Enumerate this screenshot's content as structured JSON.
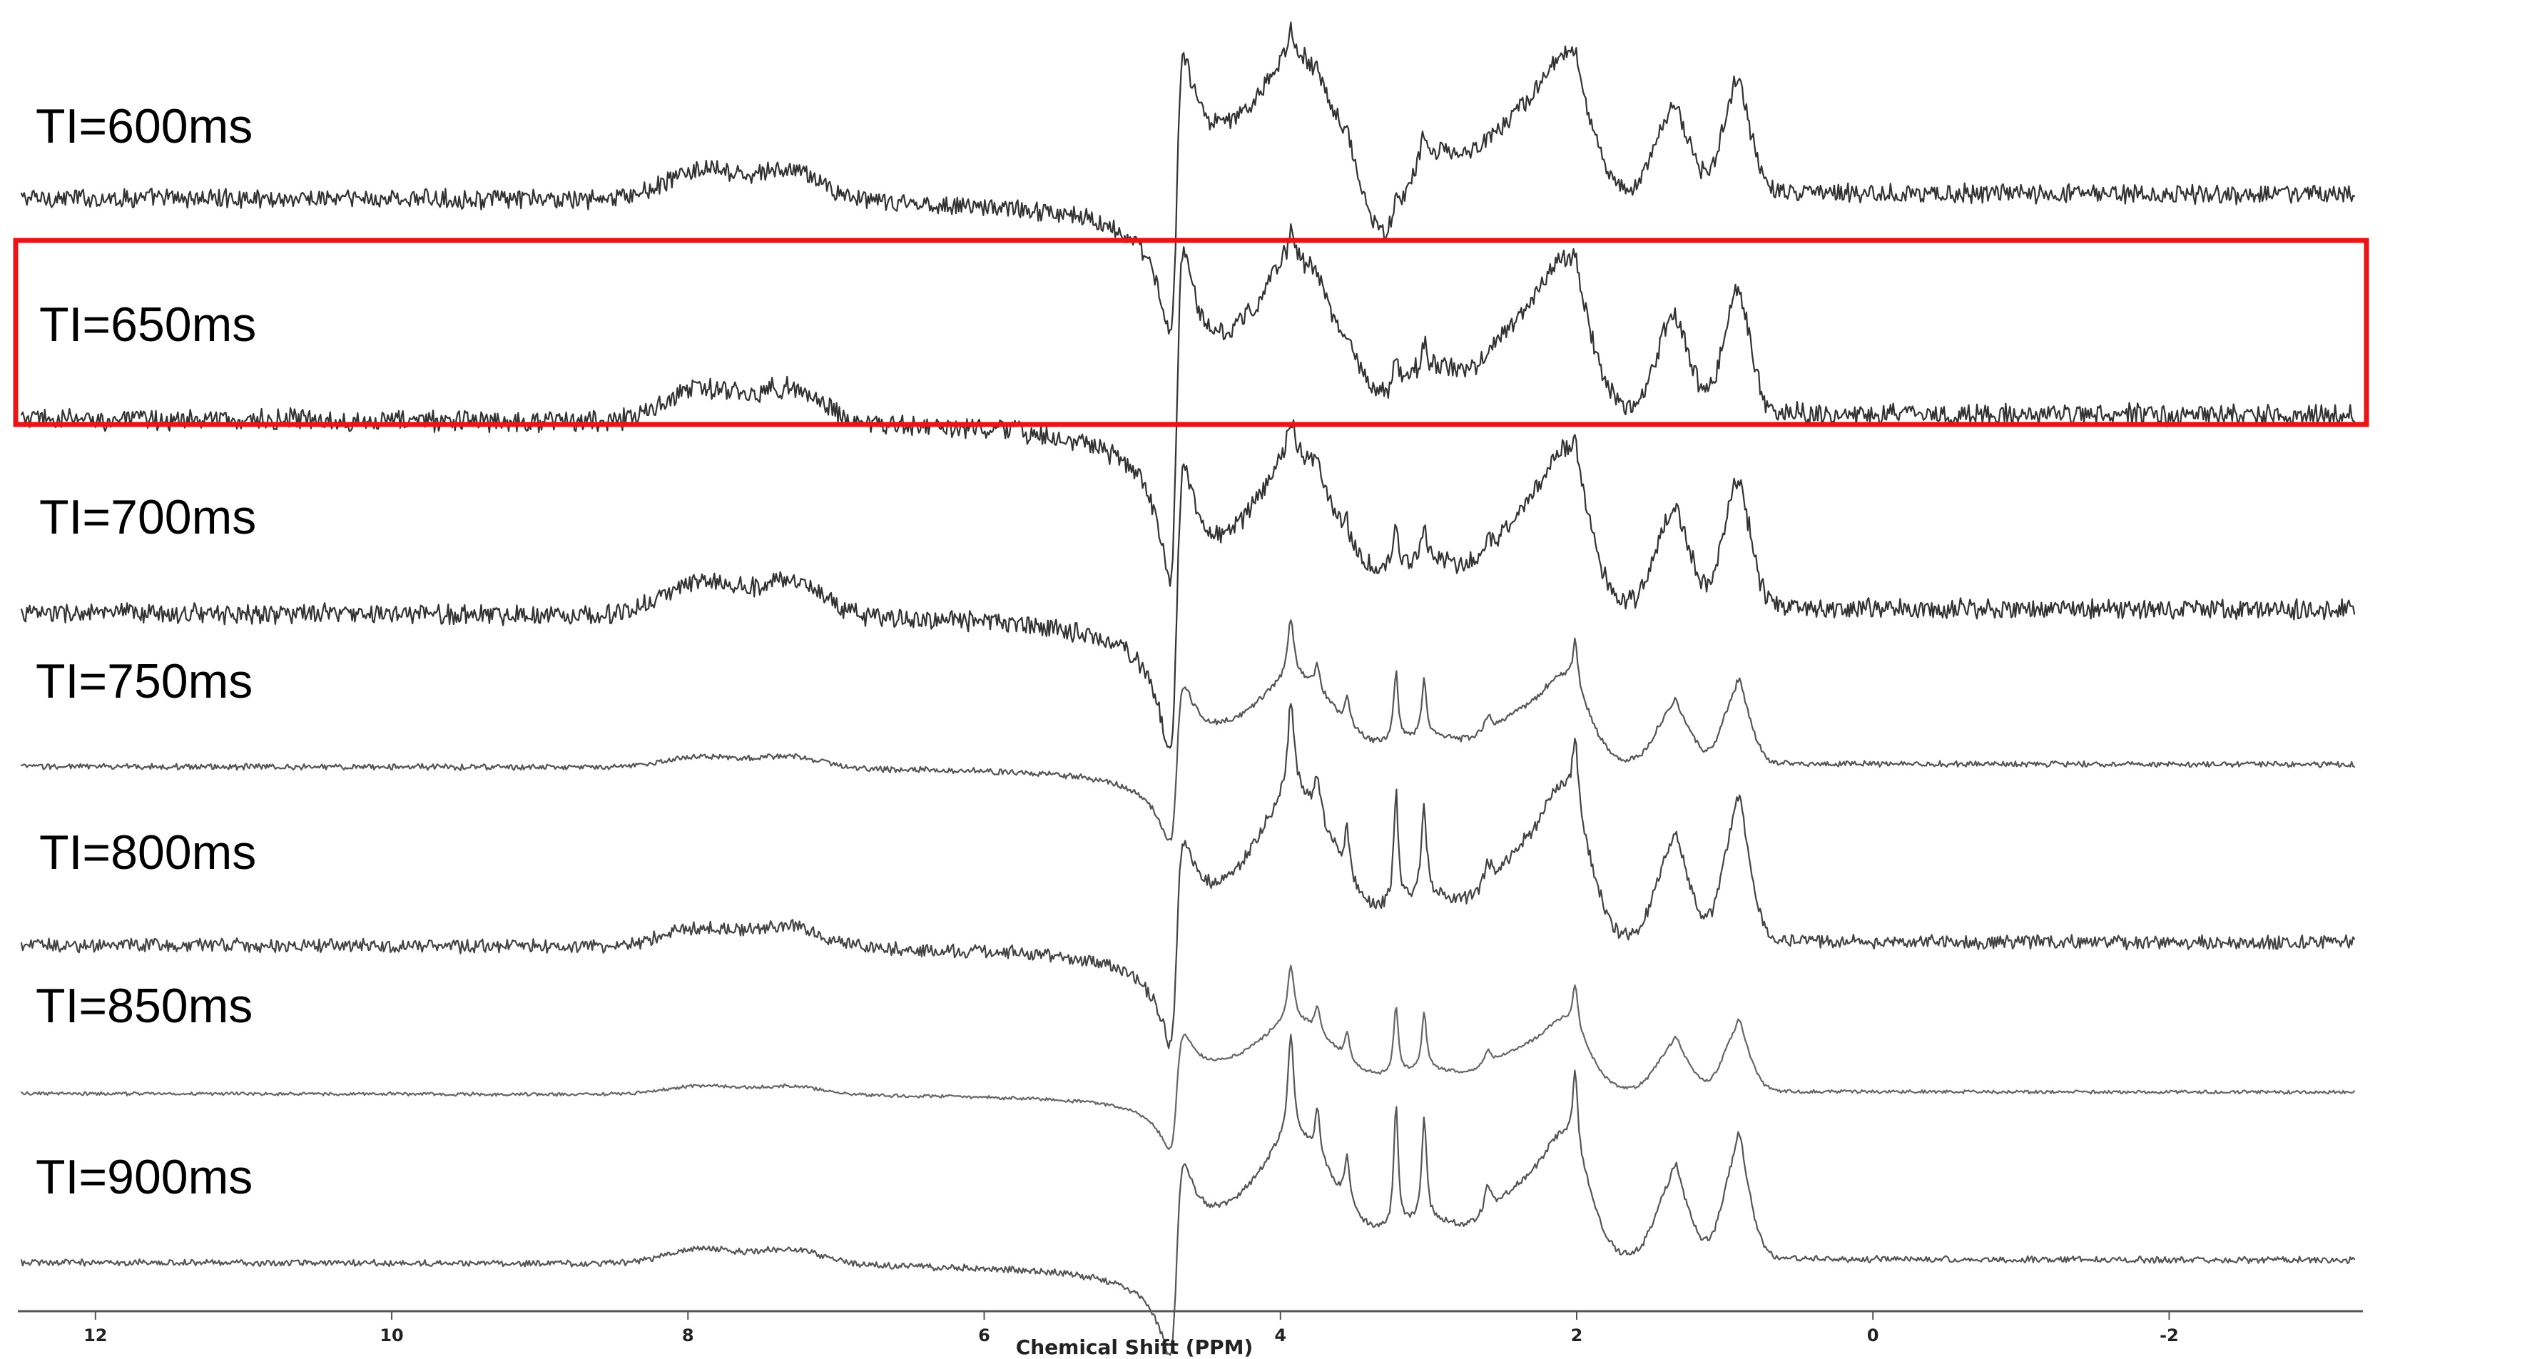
{
  "chart_data": {
    "type": "line",
    "title": "",
    "xlabel": "Chemical Shift (PPM)",
    "ylabel": "",
    "x_reversed": true,
    "xlim": [
      12.5,
      -3.25
    ],
    "x_ticks": [
      12,
      10,
      8,
      6,
      4,
      2,
      0,
      -2
    ],
    "x_tick_labels": [
      "12",
      "10",
      "8",
      "6",
      "4",
      "2",
      "0",
      "-2"
    ],
    "highlight": {
      "series": "TI=650ms",
      "color": "#e81416",
      "style": "rectangle"
    },
    "peaks_ppm": {
      "water_dispersive": 4.7,
      "creatine_3_9": 3.93,
      "myo_inositol_3_6": 3.55,
      "choline_3_2": 3.22,
      "creatine_3_0": 3.03,
      "glx_2_35": 2.35,
      "naa_2_0": 2.01,
      "lipid_1_3": 1.33,
      "lipid_0_9": 0.9,
      "aromatic_7_9": 7.9,
      "aromatic_7_3": 7.3
    },
    "series": [
      {
        "name": "TI=600ms",
        "color": "#333333",
        "noise": 0.05,
        "water": -0.9,
        "broad": 1.0,
        "sharp": 0.35,
        "aromatic": 0.18,
        "dip3_3": -0.45
      },
      {
        "name": "TI=650ms",
        "color": "#333333",
        "noise": 0.05,
        "water": -0.95,
        "broad": 1.0,
        "sharp": 0.3,
        "aromatic": 0.18,
        "dip3_3": -0.1
      },
      {
        "name": "TI=700ms",
        "color": "#333333",
        "noise": 0.045,
        "water": -0.8,
        "broad": 1.0,
        "sharp": 0.4,
        "aromatic": 0.18,
        "dip3_3": 0.0
      },
      {
        "name": "TI=750ms",
        "color": "#555555",
        "noise": 0.018,
        "water": -0.6,
        "broad": 0.75,
        "sharp": 0.9,
        "aromatic": 0.08,
        "dip3_3": 0.0
      },
      {
        "name": "TI=800ms",
        "color": "#444444",
        "noise": 0.03,
        "water": -0.55,
        "broad": 0.95,
        "sharp": 1.0,
        "aromatic": 0.1,
        "dip3_3": 0.0
      },
      {
        "name": "TI=850ms",
        "color": "#666666",
        "noise": 0.012,
        "water": -0.5,
        "broad": 0.7,
        "sharp": 1.0,
        "aromatic": 0.07,
        "dip3_3": 0.0
      },
      {
        "name": "TI=900ms",
        "color": "#555555",
        "noise": 0.015,
        "water": -0.55,
        "broad": 0.8,
        "sharp": 1.2,
        "aromatic": 0.08,
        "dip3_3": 0.0
      }
    ]
  }
}
